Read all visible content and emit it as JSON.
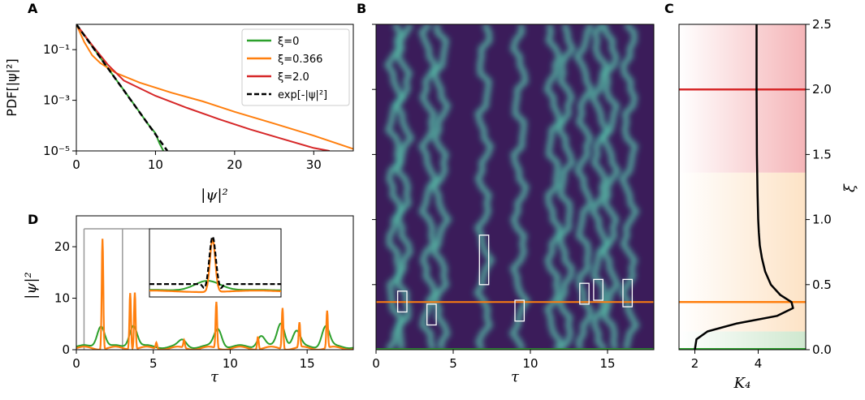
{
  "colors": {
    "green": "#2ca02c",
    "orange": "#ff7f0e",
    "red": "#d62728",
    "black": "#000000",
    "heatmap_bg": "#3b1c5a",
    "heatmap_streak": "#2fb3a0",
    "zone_red": "#f5b5b8",
    "zone_orange": "#fde3c6",
    "zone_green": "#cfe8cf"
  },
  "panels": {
    "A": {
      "letter": "A",
      "ylabel": "PDF[|ψ|²]",
      "xlabel": "|ψ|²"
    },
    "B": {
      "letter": "B",
      "xlabel": "τ"
    },
    "C": {
      "letter": "C",
      "xlabel": "K₄",
      "ylabel": "ξ"
    },
    "D": {
      "letter": "D",
      "ylabel": "|ψ|²",
      "xlabel": "τ"
    }
  },
  "chart_data": [
    {
      "id": "A",
      "type": "line",
      "xlabel": "|ψ|²",
      "ylabel": "PDF[|ψ|²]",
      "xlim": [
        0,
        35
      ],
      "ylim": [
        1e-05,
        1
      ],
      "yscale": "log",
      "x_ticks": [
        "0",
        "10",
        "20",
        "30"
      ],
      "y_ticks": [
        "10⁻¹",
        "10⁻³",
        "10⁻⁵"
      ],
      "legend_position": "top-right",
      "series": [
        {
          "name": "ξ=0",
          "color": "#2ca02c",
          "x": [
            0,
            2,
            4,
            6,
            8,
            9,
            10,
            10.5,
            11
          ],
          "y": [
            1,
            0.135,
            0.018,
            0.0025,
            0.00034,
            0.00012,
            5e-05,
            2e-05,
            1e-05
          ]
        },
        {
          "name": "ξ=0.366",
          "color": "#ff7f0e",
          "x": [
            0,
            1,
            2,
            3,
            5,
            8,
            12,
            16,
            20,
            25,
            30,
            35
          ],
          "y": [
            1,
            0.2,
            0.06,
            0.03,
            0.012,
            0.005,
            0.002,
            0.0009,
            0.00035,
            0.00012,
            4e-05,
            1.2e-05
          ]
        },
        {
          "name": "ξ=2.0",
          "color": "#d62728",
          "x": [
            0,
            2,
            4,
            6,
            10,
            14,
            18,
            22,
            26,
            30,
            32
          ],
          "y": [
            1,
            0.15,
            0.025,
            0.006,
            0.0015,
            0.0005,
            0.00018,
            7e-05,
            3e-05,
            1.3e-05,
            1e-05
          ]
        },
        {
          "name": "exp[-|ψ|²]",
          "color": "#000000",
          "dashed": true,
          "x": [
            0,
            11.5
          ],
          "y": [
            1,
            1.01e-05
          ]
        }
      ]
    },
    {
      "id": "B",
      "type": "heatmap",
      "xlabel": "τ",
      "xlim": [
        0,
        18
      ],
      "ylim": [
        0,
        2.5
      ],
      "x_ticks": [
        "0",
        "5",
        "10",
        "15"
      ],
      "streak_tau": [
        1.2,
        1.8,
        3.4,
        4.2,
        7.0,
        9.3,
        11.5,
        12.3,
        13.5,
        14.5,
        15.2,
        16.4
      ],
      "hlines": [
        {
          "y": 0.366,
          "color": "#ff7f0e"
        },
        {
          "y": 0.005,
          "color": "#2ca02c"
        }
      ],
      "boxes": [
        {
          "tau_min": 1.4,
          "tau_max": 2.0,
          "y_min": 0.29,
          "y_max": 0.45
        },
        {
          "tau_min": 3.3,
          "tau_max": 3.9,
          "y_min": 0.19,
          "y_max": 0.35
        },
        {
          "tau_min": 6.7,
          "tau_max": 7.3,
          "y_min": 0.5,
          "y_max": 0.88
        },
        {
          "tau_min": 9.0,
          "tau_max": 9.6,
          "y_min": 0.22,
          "y_max": 0.38
        },
        {
          "tau_min": 13.2,
          "tau_max": 13.8,
          "y_min": 0.35,
          "y_max": 0.51
        },
        {
          "tau_min": 14.1,
          "tau_max": 14.7,
          "y_min": 0.38,
          "y_max": 0.54
        },
        {
          "tau_min": 16.0,
          "tau_max": 16.6,
          "y_min": 0.33,
          "y_max": 0.54
        }
      ]
    },
    {
      "id": "C",
      "type": "line",
      "xlabel": "K₄",
      "ylabel": "ξ",
      "xlim": [
        1.5,
        5.5
      ],
      "ylim": [
        0,
        2.5
      ],
      "x_ticks": [
        "2",
        "4"
      ],
      "y_ticks": [
        "0.0",
        "0.5",
        "1.0",
        "1.5",
        "2.0",
        "2.5"
      ],
      "zones": [
        {
          "y_min": 1.36,
          "y_max": 2.5,
          "color": "#f5b5b8"
        },
        {
          "y_min": 0.14,
          "y_max": 1.36,
          "color": "#fde3c6"
        },
        {
          "y_min": 0.0,
          "y_max": 0.14,
          "color": "#cfe8cf"
        }
      ],
      "hlines": [
        {
          "y": 2.0,
          "color": "#d62728"
        },
        {
          "y": 0.366,
          "color": "#ff7f0e"
        },
        {
          "y": 0.005,
          "color": "#2ca02c"
        }
      ],
      "series": [
        {
          "name": "K4",
          "color": "#000000",
          "y": [
            0.0,
            0.08,
            0.14,
            0.2,
            0.26,
            0.32,
            0.366,
            0.42,
            0.5,
            0.6,
            0.7,
            0.8,
            0.9,
            1.0,
            1.2,
            1.5,
            2.0,
            2.5
          ],
          "x": [
            2.0,
            2.05,
            2.4,
            3.3,
            4.6,
            5.1,
            5.05,
            4.7,
            4.4,
            4.22,
            4.12,
            4.05,
            4.02,
            4.0,
            3.98,
            3.96,
            3.95,
            3.95
          ]
        }
      ]
    },
    {
      "id": "D",
      "type": "line",
      "xlabel": "τ",
      "ylabel": "|ψ|²",
      "xlim": [
        0,
        18
      ],
      "ylim": [
        0,
        26
      ],
      "x_ticks": [
        "0",
        "5",
        "10",
        "15"
      ],
      "y_ticks": [
        "0",
        "10",
        "20"
      ],
      "peaks_orange": [
        {
          "tau": 1.7,
          "h": 21.5
        },
        {
          "tau": 3.5,
          "h": 11.0
        },
        {
          "tau": 3.8,
          "h": 11.0
        },
        {
          "tau": 9.1,
          "h": 9.0
        },
        {
          "tau": 11.8,
          "h": 2.5
        },
        {
          "tau": 13.4,
          "h": 8.0
        },
        {
          "tau": 14.5,
          "h": 4.8
        },
        {
          "tau": 16.3,
          "h": 7.2
        },
        {
          "tau": 5.2,
          "h": 1.2
        },
        {
          "tau": 7.0,
          "h": 1.5
        }
      ],
      "peaks_green": [
        {
          "tau": 1.6,
          "h": 4.2
        },
        {
          "tau": 3.7,
          "h": 4.3
        },
        {
          "tau": 9.2,
          "h": 3.5
        },
        {
          "tau": 12.0,
          "h": 2.2
        },
        {
          "tau": 13.3,
          "h": 4.6
        },
        {
          "tau": 14.3,
          "h": 3.0
        },
        {
          "tau": 16.2,
          "h": 4.0
        },
        {
          "tau": 6.9,
          "h": 1.2
        }
      ],
      "zoom_window": {
        "tau_min": 0.5,
        "tau_max": 3.0
      }
    }
  ]
}
